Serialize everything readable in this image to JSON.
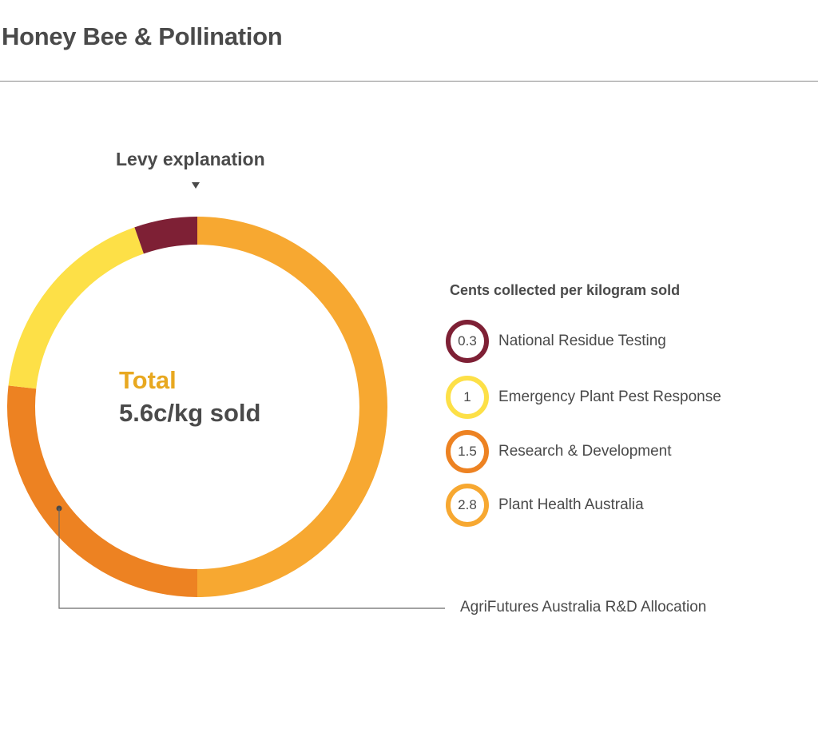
{
  "title": "Honey Bee & Pollination",
  "levy_explanation": "Levy explanation",
  "total": {
    "label": "Total",
    "value": "5.6c/kg sold"
  },
  "legend": {
    "title": "Cents collected per kilogram sold",
    "items": [
      {
        "value": "0.3",
        "label": "National Residue Testing",
        "color": "#7e2035"
      },
      {
        "value": "1",
        "label": "Emergency Plant Pest Response",
        "color": "#fde047"
      },
      {
        "value": "1.5",
        "label": "Research & Development",
        "color": "#ed8222"
      },
      {
        "value": "2.8",
        "label": "Plant Health Australia",
        "color": "#f7a831"
      }
    ]
  },
  "callout": {
    "label": "AgriFutures Australia R&D Allocation",
    "color": "#4a4a4a"
  },
  "chart_data": {
    "type": "pie",
    "title": "Honey Bee & Pollination",
    "donut": true,
    "start": "top",
    "direction": "clockwise",
    "categories": [
      "Plant Health Australia",
      "Research & Development",
      "Emergency Plant Pest Response",
      "National Residue Testing"
    ],
    "values": [
      2.8,
      1.5,
      1,
      0.3
    ],
    "colors": [
      "#f7a831",
      "#ed8222",
      "#fde047",
      "#7e2035"
    ],
    "total": 5.6,
    "unit": "c/kg",
    "center_text": [
      "Total",
      "5.6c/kg sold"
    ]
  }
}
